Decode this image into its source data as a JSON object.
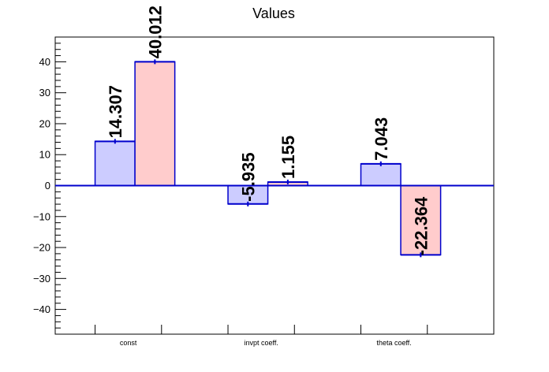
{
  "chart_data": {
    "type": "bar",
    "title": "Values",
    "categories": [
      "const",
      "invpt coeff.",
      "theta coeff."
    ],
    "series": [
      {
        "values": [
          14.307,
          -5.935,
          7.043
        ],
        "labels": [
          "14.307",
          "-5.935",
          "7.043"
        ],
        "fill": "#ccccff",
        "stroke": "#0000cc"
      },
      {
        "values": [
          40.012,
          1.155,
          -22.364
        ],
        "labels": [
          "40.012",
          "1.155",
          "-22.364"
        ],
        "fill": "#ffcccc",
        "stroke": "#0000cc"
      }
    ],
    "ylim": [
      -48,
      48
    ],
    "yticks": [
      "40",
      "30",
      "20",
      "10",
      "0",
      "−10",
      "−20",
      "−30",
      "−40"
    ],
    "grid": false
  }
}
